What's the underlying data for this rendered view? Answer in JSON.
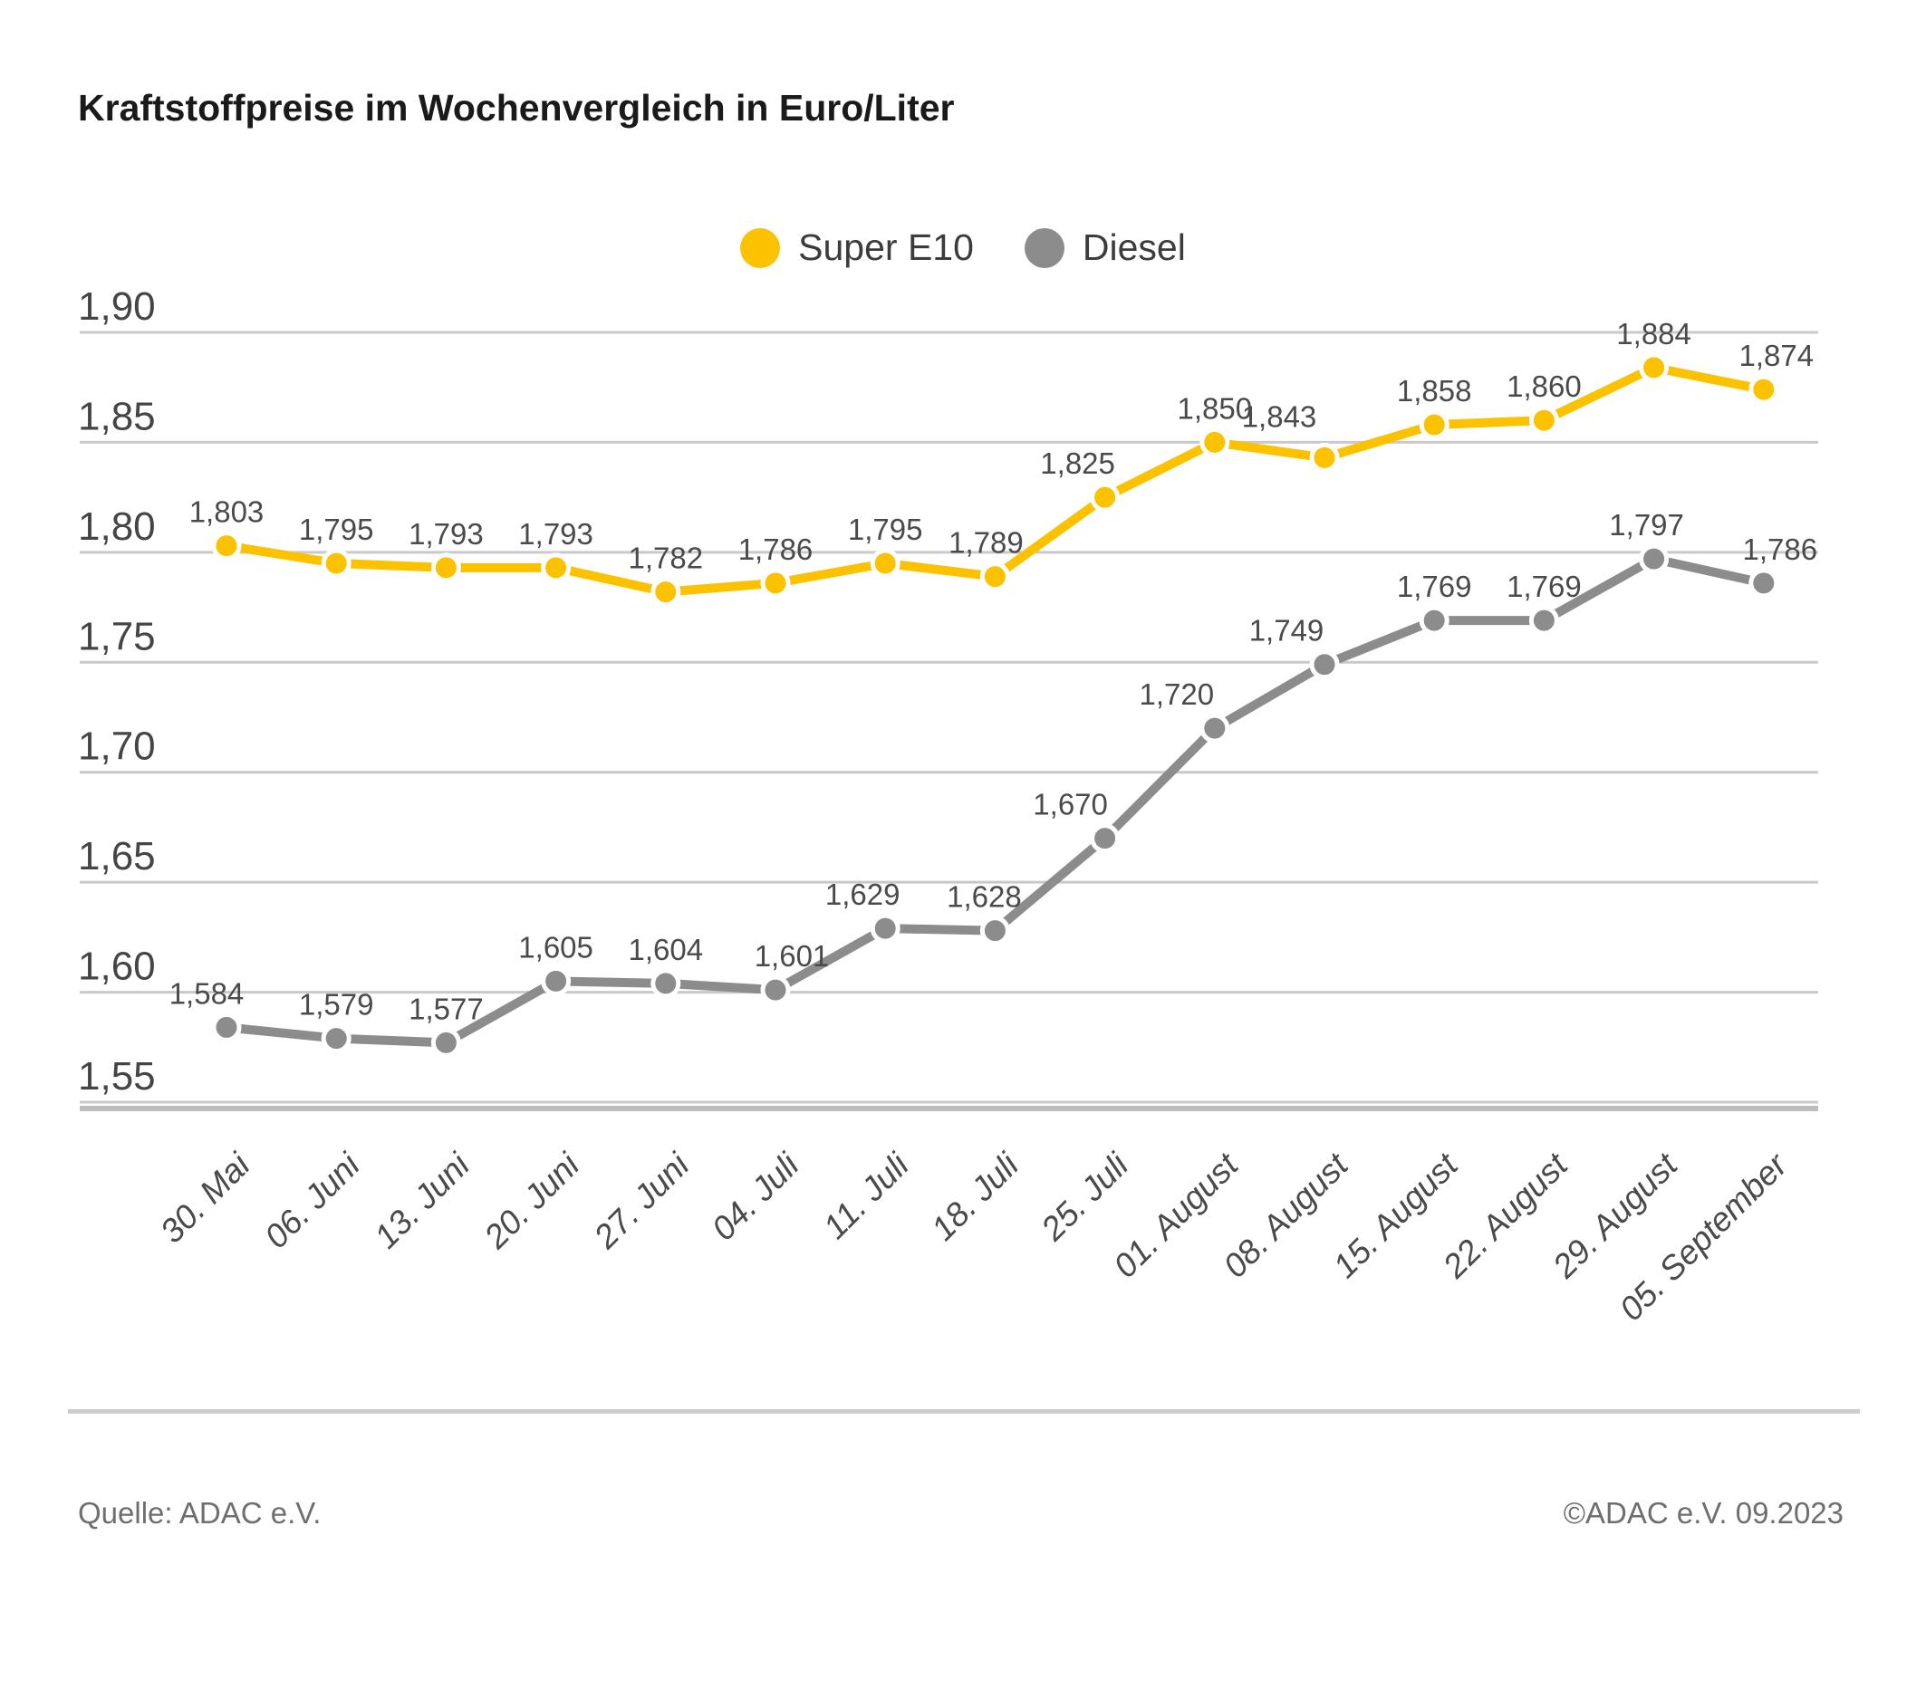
{
  "title": "Kraftstoffpreise im Wochenvergleich in Euro/Liter",
  "legend": [
    {
      "name": "Super E10",
      "color": "#FCC200"
    },
    {
      "name": "Diesel",
      "color": "#8C8C8C"
    }
  ],
  "footer": {
    "source": "Quelle: ADAC e.V.",
    "copyright": "©ADAC e.V. 09.2023"
  },
  "chart_data": {
    "type": "line",
    "title": "Kraftstoffpreise im Wochenvergleich in Euro/Liter",
    "categories": [
      "30. Mai",
      "06. Juni",
      "13. Juni",
      "20. Juni",
      "27. Juni",
      "04. Juli",
      "11. Juli",
      "18. Juli",
      "25. Juli",
      "01. August",
      "08. August",
      "15. August",
      "22. August",
      "29. August",
      "05. September"
    ],
    "series": [
      {
        "name": "Super E10",
        "color": "#FCC200",
        "values": [
          1.803,
          1.795,
          1.793,
          1.793,
          1.782,
          1.786,
          1.795,
          1.789,
          1.825,
          1.85,
          1.843,
          1.858,
          1.86,
          1.884,
          1.874
        ],
        "labels": [
          "1,803",
          "1,795",
          "1,793",
          "1,793",
          "1,782",
          "1,786",
          "1,795",
          "1,789",
          "1,825",
          "1,850",
          "1,843",
          "1,858",
          "1,860",
          "1,884",
          "1,874"
        ],
        "label_dx": [
          0,
          0,
          0,
          0,
          0,
          0,
          0,
          -10,
          -30,
          0,
          -50,
          0,
          0,
          0,
          14
        ],
        "label_dy": [
          0,
          0,
          0,
          0,
          0,
          0,
          0,
          0,
          0,
          0,
          -8,
          0,
          0,
          0,
          0
        ]
      },
      {
        "name": "Diesel",
        "color": "#8C8C8C",
        "values": [
          1.584,
          1.579,
          1.577,
          1.605,
          1.604,
          1.601,
          1.629,
          1.628,
          1.67,
          1.72,
          1.749,
          1.769,
          1.769,
          1.797,
          1.786
        ],
        "labels": [
          "1,584",
          "1,579",
          "1,577",
          "1,605",
          "1,604",
          "1,601",
          "1,629",
          "1,628",
          "1,670",
          "1,720",
          "1,749",
          "1,769",
          "1,769",
          "1,797",
          "1,786"
        ],
        "label_dx": [
          -22,
          0,
          0,
          0,
          0,
          18,
          -25,
          -12,
          -38,
          -42,
          -42,
          0,
          0,
          -8,
          18
        ],
        "label_dy": [
          0,
          0,
          0,
          0,
          0,
          0,
          0,
          0,
          0,
          0,
          0,
          0,
          0,
          0,
          0
        ]
      }
    ],
    "xlabel": "",
    "ylabel": "",
    "ylim": [
      1.55,
      1.9
    ],
    "y_ticks": {
      "values": [
        1.9,
        1.85,
        1.8,
        1.75,
        1.7,
        1.65,
        1.6,
        1.55
      ],
      "labels": [
        "1,90",
        "1,85",
        "1,80",
        "1,75",
        "1,70",
        "1,65",
        "1,60",
        "1,55"
      ]
    },
    "grid": true,
    "legend_position": "top-center"
  }
}
